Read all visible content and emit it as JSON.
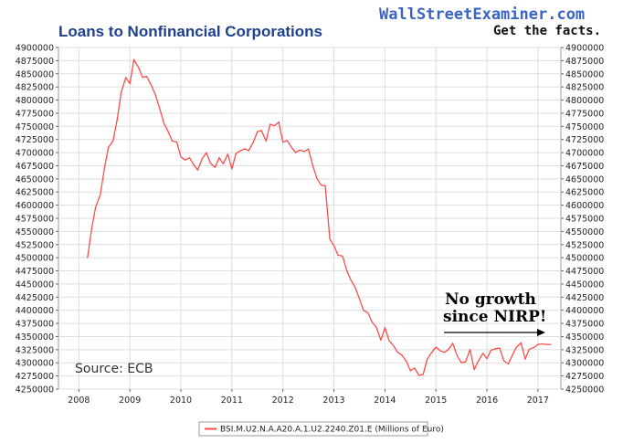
{
  "header": {
    "title": "Loans to Nonfinancial Corporations",
    "brand": "WallStreetExaminer.com",
    "tagline": "Get the facts."
  },
  "chart_data": {
    "type": "line",
    "title": "Loans to Nonfinancial Corporations",
    "xlabel": "",
    "ylabel": "",
    "xlim": [
      2007.6,
      2017.45
    ],
    "ylim": [
      4250000,
      4900000
    ],
    "y_ticks": [
      4900000,
      4875000,
      4850000,
      4825000,
      4800000,
      4775000,
      4750000,
      4725000,
      4700000,
      4675000,
      4650000,
      4625000,
      4600000,
      4575000,
      4550000,
      4525000,
      4500000,
      4475000,
      4450000,
      4425000,
      4400000,
      4375000,
      4350000,
      4325000,
      4300000,
      4275000,
      4250000
    ],
    "x_ticks": [
      2008,
      2009,
      2010,
      2011,
      2012,
      2013,
      2014,
      2015,
      2016,
      2017
    ],
    "grid": true,
    "legend_position": "bottom",
    "series": [
      {
        "name": "BSI.M.U2.N.A.A20.A.1.U2.2240.Z01.E (Millions of Euro)",
        "color": "#ff4b4b",
        "x": [
          2008.17,
          2008.25,
          2008.33,
          2008.42,
          2008.5,
          2008.58,
          2008.67,
          2008.75,
          2008.83,
          2008.92,
          2009.0,
          2009.08,
          2009.17,
          2009.25,
          2009.33,
          2009.42,
          2009.5,
          2009.58,
          2009.67,
          2009.75,
          2009.83,
          2009.92,
          2010.0,
          2010.08,
          2010.17,
          2010.25,
          2010.33,
          2010.42,
          2010.5,
          2010.58,
          2010.67,
          2010.75,
          2010.83,
          2010.92,
          2011.0,
          2011.08,
          2011.17,
          2011.25,
          2011.33,
          2011.42,
          2011.5,
          2011.58,
          2011.67,
          2011.75,
          2011.83,
          2011.92,
          2012.0,
          2012.08,
          2012.17,
          2012.25,
          2012.33,
          2012.42,
          2012.5,
          2012.58,
          2012.67,
          2012.75,
          2012.83,
          2012.92,
          2013.0,
          2013.08,
          2013.17,
          2013.25,
          2013.33,
          2013.42,
          2013.5,
          2013.58,
          2013.67,
          2013.75,
          2013.83,
          2013.92,
          2014.0,
          2014.08,
          2014.17,
          2014.25,
          2014.33,
          2014.42,
          2014.5,
          2014.58,
          2014.67,
          2014.75,
          2014.83,
          2014.92,
          2015.0,
          2015.08,
          2015.17,
          2015.25,
          2015.33,
          2015.42,
          2015.5,
          2015.58,
          2015.67,
          2015.75,
          2015.83,
          2015.92,
          2016.0,
          2016.08,
          2016.17,
          2016.25,
          2016.33,
          2016.42,
          2016.5,
          2016.58,
          2016.67,
          2016.75,
          2016.83,
          2016.92,
          2017.0,
          2017.08,
          2017.17,
          2017.25
        ],
        "values": [
          4500000,
          4555000,
          4597000,
          4620000,
          4670000,
          4710000,
          4722000,
          4762000,
          4815000,
          4843000,
          4831000,
          4877000,
          4862000,
          4843000,
          4845000,
          4828000,
          4810000,
          4785000,
          4755000,
          4740000,
          4722000,
          4720000,
          4692000,
          4686000,
          4690000,
          4677000,
          4667000,
          4689000,
          4700000,
          4680000,
          4672000,
          4690000,
          4679000,
          4697000,
          4669000,
          4698000,
          4704000,
          4707000,
          4704000,
          4720000,
          4740000,
          4742000,
          4722000,
          4754000,
          4751000,
          4758000,
          4720000,
          4723000,
          4710000,
          4700000,
          4705000,
          4702000,
          4707000,
          4677000,
          4650000,
          4638000,
          4637000,
          4535000,
          4523000,
          4505000,
          4503000,
          4476000,
          4458000,
          4443000,
          4422000,
          4400000,
          4395000,
          4377000,
          4368000,
          4343000,
          4367000,
          4343000,
          4332000,
          4320000,
          4315000,
          4303000,
          4285000,
          4290000,
          4276000,
          4278000,
          4307000,
          4320000,
          4330000,
          4323000,
          4320000,
          4326000,
          4337000,
          4313000,
          4300000,
          4302000,
          4325000,
          4287000,
          4303000,
          4318000,
          4308000,
          4324000,
          4327000,
          4328000,
          4304000,
          4298000,
          4315000,
          4330000,
          4338000,
          4307000,
          4326000,
          4329000,
          4335000,
          4336000,
          4335000,
          4335000
        ]
      }
    ],
    "annotations": [
      "No growth",
      "since NIRP!"
    ],
    "source_note": "Source: ECB"
  }
}
